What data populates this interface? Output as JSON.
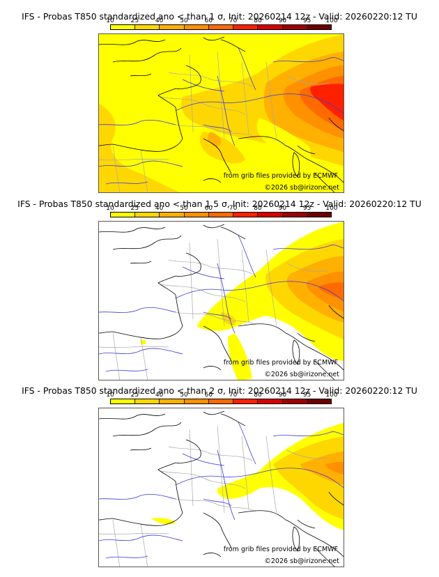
{
  "panels": [
    {
      "title": "IFS - Probas T850  standardized ano < than 1 σ, Init: 20260214 12z - Valid: 20260220:12 TU",
      "threshold_sigma": "1",
      "credit_source": "from grib files provided by ECMWF",
      "credit_copyright": "©2026 sb@irizone.net"
    },
    {
      "title": "IFS - Probas T850  standardized ano < than 1.5 σ, Init: 20260214 12z - Valid: 20260220:12 TU",
      "threshold_sigma": "1.5",
      "credit_source": "from grib files provided by ECMWF",
      "credit_copyright": "©2026 sb@irizone.net"
    },
    {
      "title": "IFS - Probas T850  standardized ano < than 2 σ, Init: 20260214 12z - Valid: 20260220:12 TU",
      "threshold_sigma": "2",
      "credit_source": "from grib files provided by ECMWF",
      "credit_copyright": "©2026 sb@irizone.net"
    }
  ],
  "legend": {
    "ticks": [
      "10",
      "25",
      "40",
      "50",
      "60",
      "70",
      "80",
      "90",
      "95",
      "100"
    ],
    "colors": [
      "#ffff00",
      "#ffd700",
      "#ffb000",
      "#ff9000",
      "#ff6a00",
      "#ff2000",
      "#d80000",
      "#a00000",
      "#700000"
    ]
  },
  "map_colors": {
    "coast": "#000000",
    "rivers": "#3a3adc",
    "borders": "#a8a8a8"
  }
}
